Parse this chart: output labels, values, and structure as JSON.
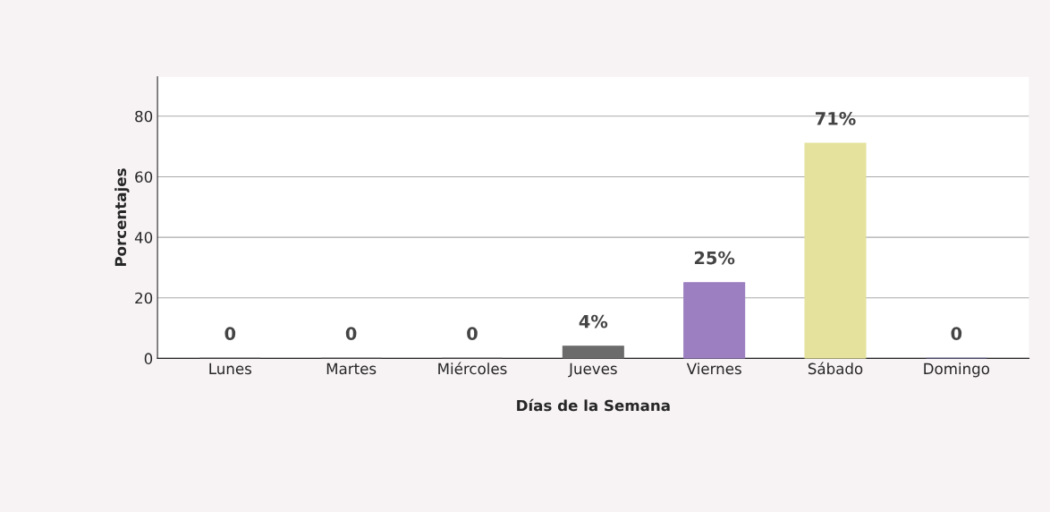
{
  "chart_data": {
    "type": "bar",
    "categories": [
      "Lunes",
      "Martes",
      "Miércoles",
      "Jueves",
      "Viernes",
      "Sábado",
      "Domingo"
    ],
    "values": [
      0,
      0,
      0,
      4,
      25,
      71,
      0
    ],
    "value_labels": [
      "0",
      "0",
      "0",
      "4%",
      "25%",
      "71%",
      "0"
    ],
    "colors": [
      "#4d4d4d",
      "#555555",
      "#555555",
      "#6b6b6b",
      "#9b7fc0",
      "#e4e29c",
      "#6a6aa8"
    ],
    "xlabel": "Días de la Semana",
    "ylabel": "Porcentajes",
    "ylim": [
      0,
      93
    ],
    "yticks": [
      0,
      20,
      40,
      60,
      80
    ],
    "grid": "y",
    "legend": false
  }
}
